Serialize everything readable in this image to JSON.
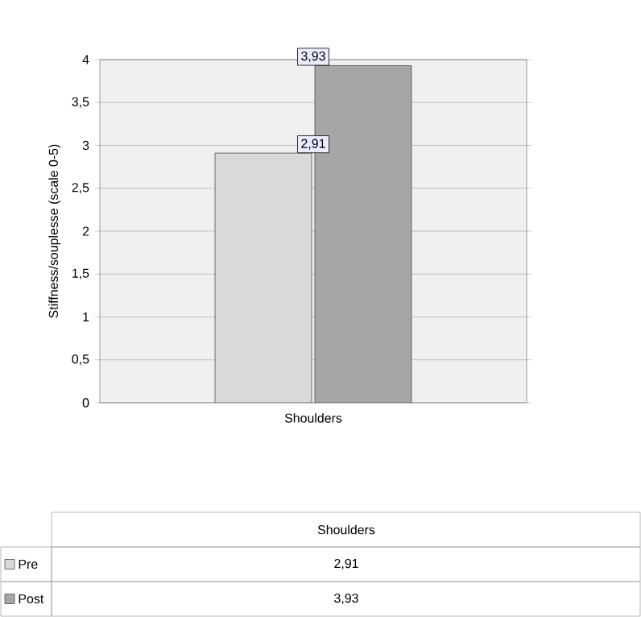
{
  "chart_data": {
    "type": "bar",
    "ylabel": "Stiffness/souplesse (scale 0-5)",
    "categories": [
      "Shoulders"
    ],
    "series": [
      {
        "name": "Pre",
        "color": "#d9d9d9",
        "values": [
          2.91
        ],
        "value_labels": [
          "2,91"
        ]
      },
      {
        "name": "Post",
        "color": "#a6a6a6",
        "values": [
          3.93
        ],
        "value_labels": [
          "3,93"
        ]
      }
    ],
    "ylim": [
      0,
      4
    ],
    "yticks": [
      0,
      {
        "value": 0.5,
        "label": "0,5"
      },
      1,
      {
        "value": 1.5,
        "label": "1,5"
      },
      2,
      {
        "value": 2.5,
        "label": "2,5"
      },
      3,
      {
        "value": 3.5,
        "label": "3,5"
      },
      4
    ],
    "grid": "y",
    "legend": "bottom left"
  }
}
